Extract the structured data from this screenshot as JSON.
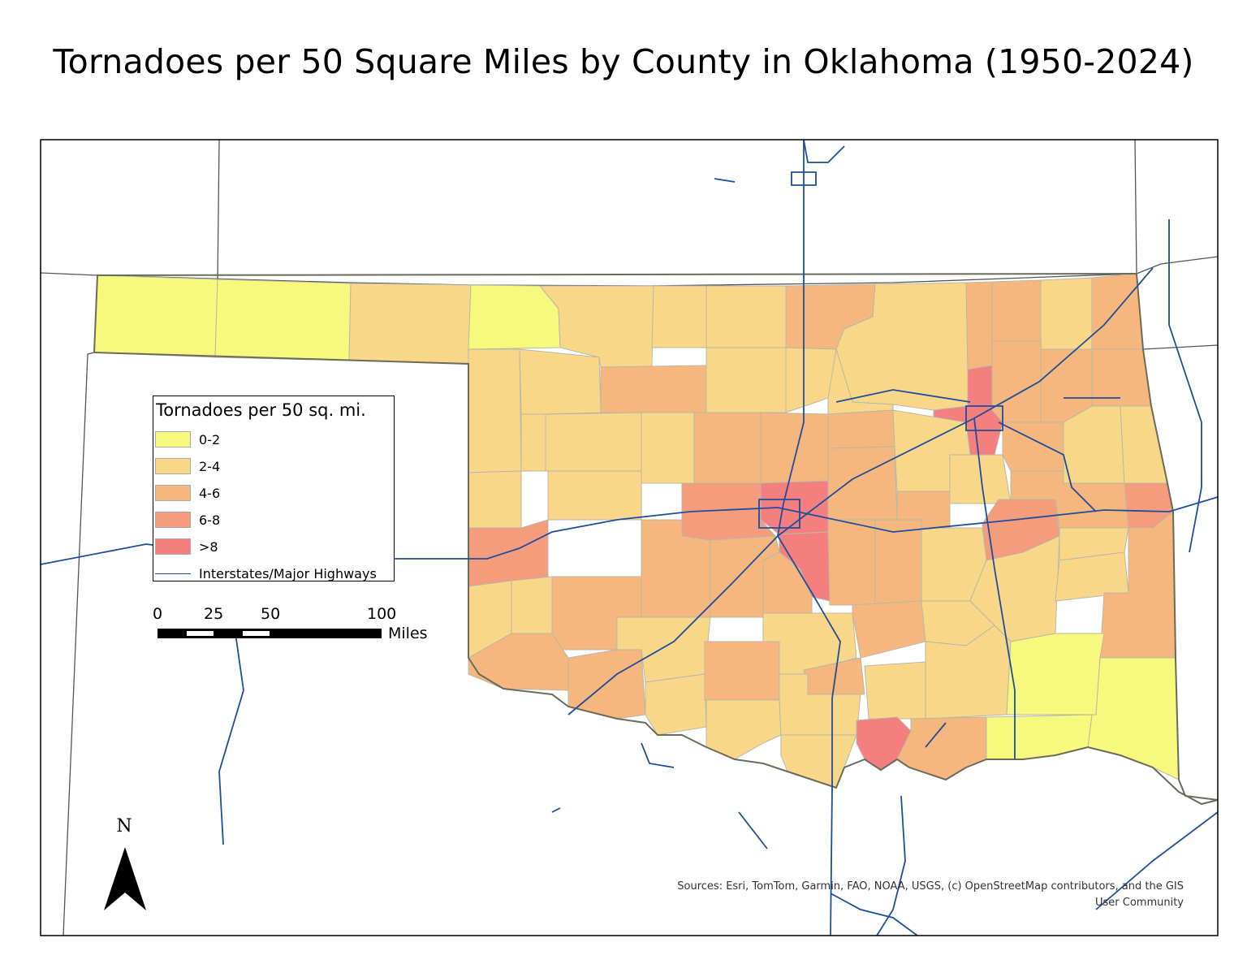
{
  "title": "Tornadoes per 50 Square Miles by County in Oklahoma (1950-2024)",
  "legend": {
    "title": "Tornadoes per 50 sq. mi.",
    "classes": [
      {
        "label": "0-2",
        "color": "#f7f97f"
      },
      {
        "label": "2-4",
        "color": "#f8d888"
      },
      {
        "label": "4-6",
        "color": "#f5b77d"
      },
      {
        "label": "6-8",
        "color": "#f59c7c"
      },
      {
        "label": ">8",
        "color": "#f57f7f"
      }
    ],
    "highway_label": "Interstates/Major Highways",
    "highway_color": "#1f4e9c"
  },
  "scale_bar": {
    "ticks": [
      "0",
      "25",
      "50",
      "100"
    ],
    "units": "Miles"
  },
  "north_arrow": {
    "label": "N"
  },
  "sources": {
    "line1": "Sources:  Esri, TomTom, Garmin, FAO, NOAA, USGS, (c) OpenStreetMap contributors, and the GIS",
    "line2": "User Community"
  },
  "colors": {
    "state_outline": "#6b6b5a",
    "county_border": "#b8b8a8",
    "neighbor_border": "#555555",
    "frame": "#000000"
  }
}
